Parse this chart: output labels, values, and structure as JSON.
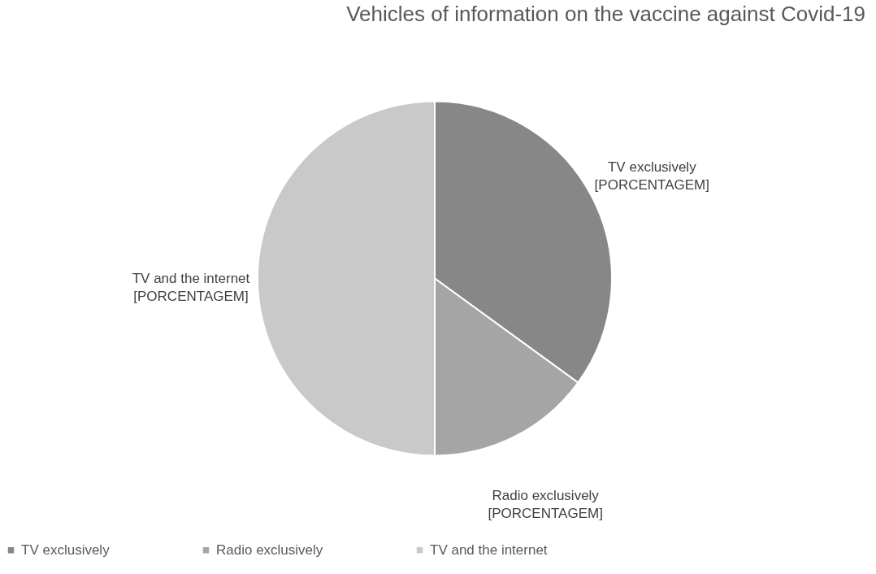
{
  "chart_data": {
    "type": "pie",
    "title": "Vehicles of information on the vaccine against Covid-19",
    "categories": [
      "TV exclusively",
      "Radio exclusively",
      "TV and the internet"
    ],
    "values": [
      35,
      15,
      50
    ],
    "colors": [
      "#878787",
      "#a5a5a5",
      "#c9c9c9"
    ],
    "value_labels": [
      "[PORCENTAGEM]",
      "[PORCENTAGEM]",
      "[PORCENTAGEM]"
    ],
    "legend": "bottom"
  }
}
